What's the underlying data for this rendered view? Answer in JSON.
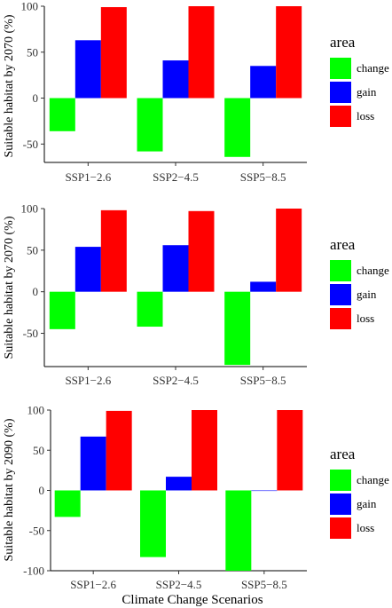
{
  "figure": {
    "xlabel": "Climate Change Scenarios",
    "legend": {
      "title": "area",
      "entries": [
        {
          "label": "change",
          "color": "#00ff00"
        },
        {
          "label": "gain",
          "color": "#0000ff"
        },
        {
          "label": "loss",
          "color": "#ff0000"
        }
      ]
    }
  },
  "chart_data": [
    {
      "type": "bar",
      "ylabel": "Suitable habitat by 2070 (%)",
      "categories": [
        "SSP1−2.6",
        "SSP2−4.5",
        "SSP5−8.5"
      ],
      "yticks": [
        100,
        50,
        0,
        -50
      ],
      "ylim": [
        -70,
        100
      ],
      "series": [
        {
          "name": "change",
          "color": "#00ff00",
          "values": [
            -36,
            -58,
            -64
          ]
        },
        {
          "name": "gain",
          "color": "#0000ff",
          "values": [
            63,
            41,
            35
          ]
        },
        {
          "name": "loss",
          "color": "#ff0000",
          "values": [
            99,
            100,
            100
          ]
        }
      ]
    },
    {
      "type": "bar",
      "ylabel": "Suitable habitat by 2070 (%)",
      "categories": [
        "SSP1−2.6",
        "SSP2−4.5",
        "SSP5−8.5"
      ],
      "yticks": [
        100,
        50,
        0,
        -50
      ],
      "ylim": [
        -90,
        100
      ],
      "series": [
        {
          "name": "change",
          "color": "#00ff00",
          "values": [
            -45,
            -42,
            -88
          ]
        },
        {
          "name": "gain",
          "color": "#0000ff",
          "values": [
            54,
            56,
            12
          ]
        },
        {
          "name": "loss",
          "color": "#ff0000",
          "values": [
            98,
            97,
            100
          ]
        }
      ]
    },
    {
      "type": "bar",
      "ylabel": "Suitable habitat by 2090 (%)",
      "categories": [
        "SSP1−2.6",
        "SSP2−4.5",
        "SSP5−8.5"
      ],
      "yticks": [
        100,
        50,
        0,
        -50,
        -100
      ],
      "ylim": [
        -100,
        100
      ],
      "series": [
        {
          "name": "change",
          "color": "#00ff00",
          "values": [
            -33,
            -83,
            -100
          ]
        },
        {
          "name": "gain",
          "color": "#0000ff",
          "values": [
            67,
            17,
            0
          ]
        },
        {
          "name": "loss",
          "color": "#ff0000",
          "values": [
            99,
            100,
            100
          ]
        }
      ]
    }
  ]
}
